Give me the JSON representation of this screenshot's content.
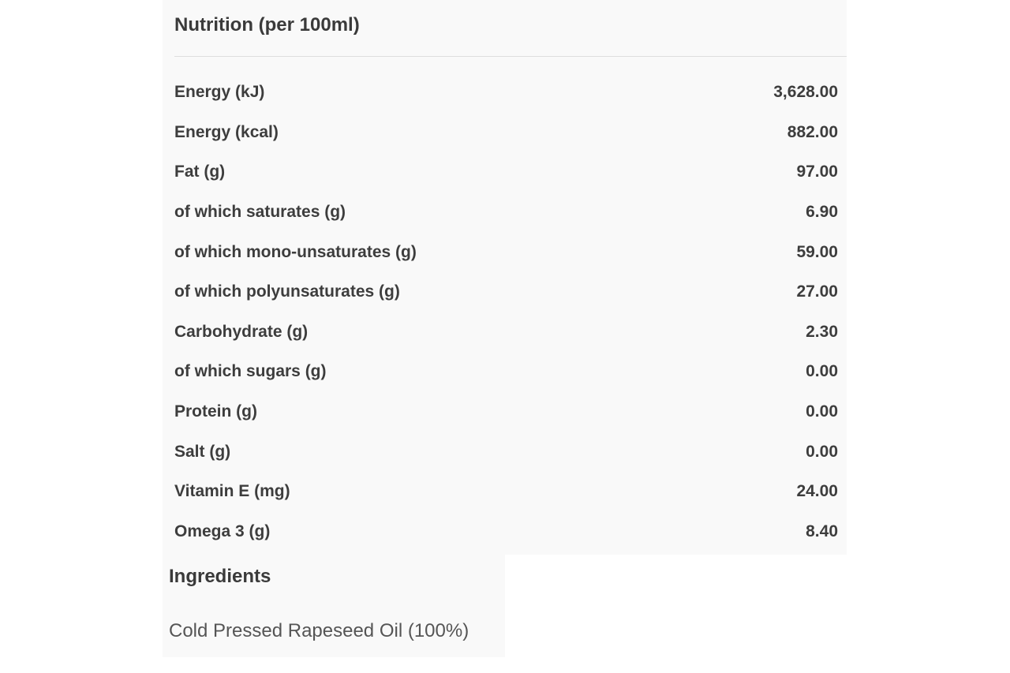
{
  "nutrition": {
    "title": "Nutrition (per 100ml)",
    "rows": [
      {
        "label": "Energy (kJ)",
        "value": "3,628.00"
      },
      {
        "label": "Energy (kcal)",
        "value": "882.00"
      },
      {
        "label": "Fat (g)",
        "value": "97.00"
      },
      {
        "label": "of which saturates (g)",
        "value": "6.90"
      },
      {
        "label": "of which mono-unsaturates (g)",
        "value": "59.00"
      },
      {
        "label": "of which polyunsaturates (g)",
        "value": "27.00"
      },
      {
        "label": "Carbohydrate (g)",
        "value": "2.30"
      },
      {
        "label": "of which sugars (g)",
        "value": "0.00"
      },
      {
        "label": "Protein (g)",
        "value": "0.00"
      },
      {
        "label": "Salt (g)",
        "value": "0.00"
      },
      {
        "label": "Vitamin E (mg)",
        "value": "24.00"
      },
      {
        "label": "Omega 3 (g)",
        "value": "8.40"
      }
    ]
  },
  "ingredients": {
    "title": "Ingredients",
    "text": "Cold Pressed Rapeseed Oil (100%)"
  },
  "colors": {
    "panel_background": "#f9f9f9",
    "text": "#3d3d3d",
    "divider": "#dedede"
  }
}
